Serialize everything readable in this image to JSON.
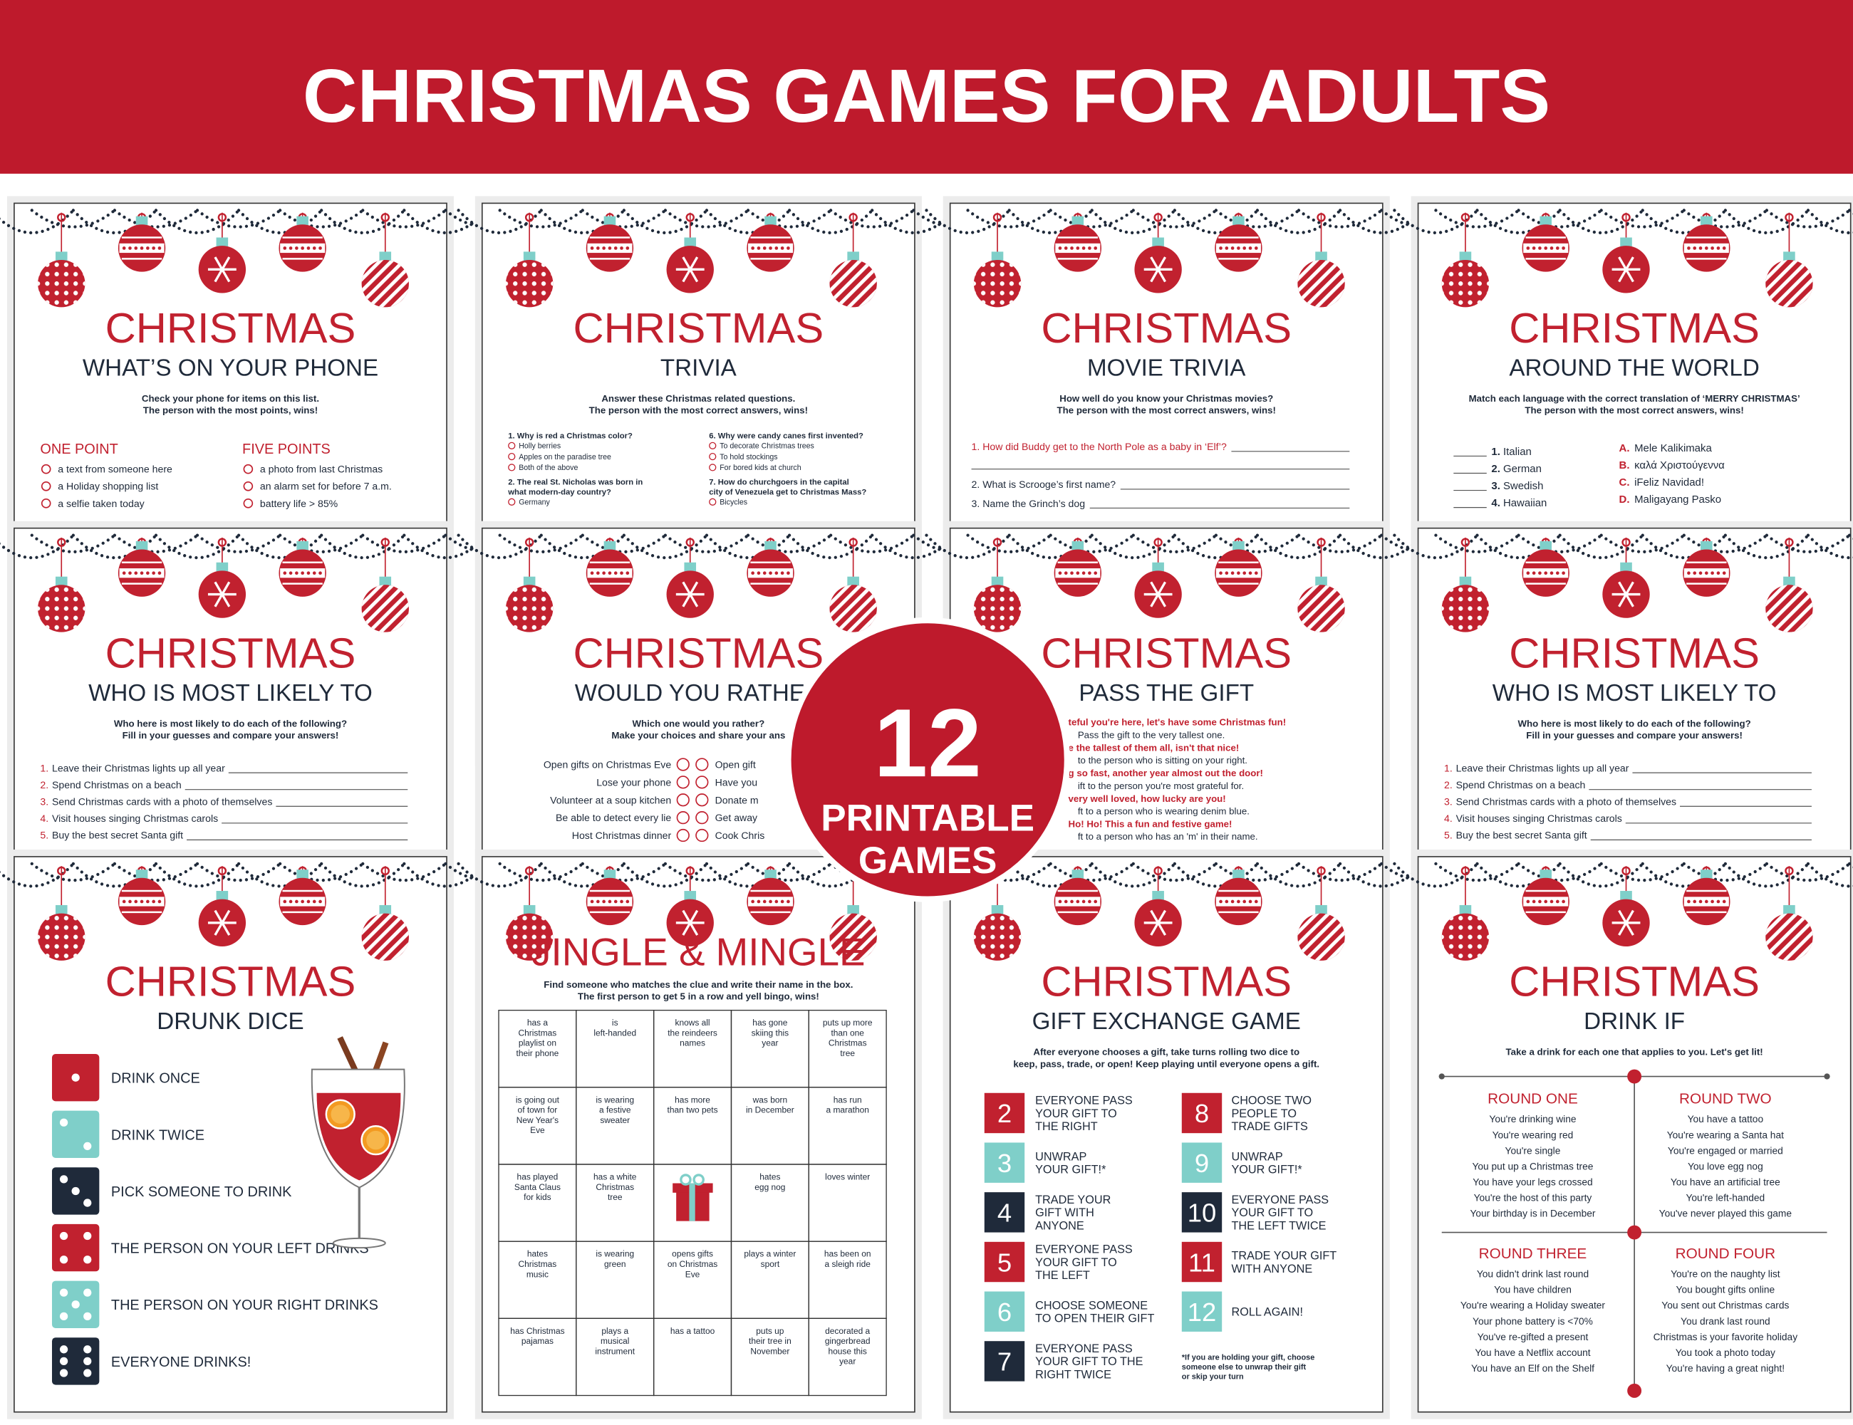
{
  "header": {
    "title": "CHRISTMAS GAMES FOR ADULTS"
  },
  "badge": {
    "number": "12",
    "line1": "PRINTABLE",
    "line2": "GAMES"
  },
  "cards": [
    {
      "title": "CHRISTMAS",
      "subtitle": "WHAT’S ON YOUR PHONE",
      "intro": [
        "Check your phone for items on this list.",
        "The person with the most points, wins!"
      ],
      "columns": [
        {
          "heading": "ONE POINT",
          "items": [
            "a text from someone here",
            "a Holiday shopping list",
            "a selfie taken today"
          ]
        },
        {
          "heading": "FIVE POINTS",
          "items": [
            "a photo from last Christmas",
            "an alarm set for before 7 a.m.",
            "battery life > 85%"
          ]
        }
      ]
    },
    {
      "title": "CHRISTMAS",
      "subtitle": "TRIVIA",
      "intro": [
        "Answer these Christmas related questions.",
        "The person with the most correct answers, wins!"
      ],
      "trivia": [
        [
          {
            "question": [
              "1. Why is red a Christmas color?"
            ],
            "options": [
              "Holly berries",
              "Apples on the paradise tree",
              "Both of the above"
            ]
          },
          {
            "question": [
              "2. The real St. Nicholas was born in",
              "what modern-day country?"
            ],
            "options": [
              "Germany"
            ]
          }
        ],
        [
          {
            "question": [
              "6. Why were candy canes first invented?"
            ],
            "options": [
              "To decorate Christmas trees",
              "To hold stockings",
              "For bored kids at church"
            ]
          },
          {
            "question": [
              "7. How do churchgoers in the capital",
              "city of Venezuela get to Christmas Mass?"
            ],
            "options": [
              "Bicycles"
            ]
          }
        ]
      ]
    },
    {
      "title": "CHRISTMAS",
      "subtitle": "MOVIE TRIVIA",
      "intro": [
        "How well do you know your Christmas movies?",
        "The person with the most correct answers, wins!"
      ],
      "questions": [
        "1. How did Buddy get to the North Pole as a baby in ‘Elf’?",
        "2. What is Scrooge’s first name?",
        "3. Name the Grinch’s dog"
      ]
    },
    {
      "title": "CHRISTMAS",
      "subtitle": "AROUND THE WORLD",
      "intro": [
        "Match each language with the correct translation of ‘MERRY CHRISTMAS’",
        "The person with the most correct answers, wins!"
      ],
      "match": {
        "left": [
          {
            "num": "1.",
            "text": "Italian"
          },
          {
            "num": "2.",
            "text": "German"
          },
          {
            "num": "3.",
            "text": "Swedish"
          },
          {
            "num": "4.",
            "text": "Hawaiian"
          }
        ],
        "right": [
          {
            "letter": "A.",
            "text": "Mele Kalikimaka"
          },
          {
            "letter": "B.",
            "text": "καλά Χριστούγεννα"
          },
          {
            "letter": "C.",
            "text": "iFeliz Navidad!"
          },
          {
            "letter": "D.",
            "text": "Maligayang Pasko"
          }
        ]
      }
    },
    {
      "title": "CHRISTMAS",
      "subtitle": "WHO IS MOST LIKELY TO",
      "intro": [
        "Who here is most likely to do each of the following?",
        "Fill in your guesses and compare your answers!"
      ],
      "items": [
        {
          "num": "1.",
          "text": "Leave their Christmas lights up all year"
        },
        {
          "num": "2.",
          "text": "Spend Christmas on a beach"
        },
        {
          "num": "3.",
          "text": "Send Christmas cards with a photo of themselves"
        },
        {
          "num": "4.",
          "text": "Visit houses singing Christmas carols"
        },
        {
          "num": "5.",
          "text": "Buy the best secret Santa gift"
        }
      ]
    },
    {
      "title": "CHRISTMAS",
      "subtitle": "WOULD YOU RATHER",
      "intro": [
        "Which one would you rather?",
        "Make your choices and share your ans"
      ],
      "pairs": [
        [
          "Open gifts on Christmas Eve",
          "Open gift"
        ],
        [
          "Lose your phone",
          "Have you"
        ],
        [
          "Volunteer at a soup kitchen",
          "Donate m"
        ],
        [
          "Be able to detect every lie",
          "Get away"
        ],
        [
          "Host Christmas dinner",
          "Cook Chris"
        ]
      ]
    },
    {
      "title": "CHRISTMAS",
      "subtitle": "PASS THE GIFT",
      "verses": [
        {
          "rhyme": "teful you're here, let's have some Christmas fun!",
          "action": "Pass the gift to the very tallest one."
        },
        {
          "rhyme": "e the tallest of them all, isn't that nice!",
          "action": "to the person who is sitting on your right."
        },
        {
          "rhyme": "g so fast, another year almost out the door!",
          "action": "ift to the person you're most grateful for."
        },
        {
          "rhyme": "very well loved, how lucky are you!",
          "action": "ft to a person who is wearing denim blue."
        },
        {
          "rhyme": "Ho! Ho! This a fun and festive game!",
          "action": "ft to a person who has an 'm' in their name."
        }
      ]
    },
    {
      "title": "CHRISTMAS",
      "subtitle": "WHO IS MOST LIKELY TO",
      "intro": [
        "Who here is most likely to do each of the following?",
        "Fill in your guesses and compare your answers!"
      ],
      "items": [
        {
          "num": "1.",
          "text": "Leave their Christmas lights up all year"
        },
        {
          "num": "2.",
          "text": "Spend Christmas on a beach"
        },
        {
          "num": "3.",
          "text": "Send Christmas cards with a photo of themselves"
        },
        {
          "num": "4.",
          "text": "Visit houses singing Christmas carols"
        },
        {
          "num": "5.",
          "text": "Buy the best secret Santa gift"
        }
      ]
    },
    {
      "title": "CHRISTMAS",
      "subtitle": "DRUNK DICE",
      "dice": [
        {
          "face": 1,
          "color": "#c1212f",
          "label": "DRINK ONCE"
        },
        {
          "face": 2,
          "color": "#7fcfc9",
          "label": "DRINK TWICE"
        },
        {
          "face": 3,
          "color": "#1f2a3a",
          "label": "PICK SOMEONE TO DRINK"
        },
        {
          "face": 4,
          "color": "#c1212f",
          "label": "THE PERSON ON YOUR LEFT DRINKS"
        },
        {
          "face": 5,
          "color": "#7fcfc9",
          "label": "THE PERSON ON YOUR RIGHT DRINKS"
        },
        {
          "face": 6,
          "color": "#1f2a3a",
          "label": "EVERYONE DRINKS!"
        }
      ]
    },
    {
      "title": "JINGLE & MINGLE",
      "intro": [
        "Find someone who matches the clue and write their name in the box.",
        "The first person to get 5 in a row and yell bingo, wins!"
      ],
      "grid": [
        [
          [
            "has a",
            "Christmas",
            "playlist on",
            "their phone"
          ],
          [
            "is",
            "left-handed"
          ],
          [
            "knows all",
            "the reindeers",
            "names"
          ],
          [
            "has gone",
            "skiing this",
            "year"
          ],
          [
            "puts up more",
            "than one",
            "Christmas",
            "tree"
          ]
        ],
        [
          [
            "is going out",
            "of town for",
            "New Year's",
            "Eve"
          ],
          [
            "is wearing",
            "a festive",
            "sweater"
          ],
          [
            "has more",
            "than two pets"
          ],
          [
            "was born",
            "in December"
          ],
          [
            "has run",
            "a marathon"
          ]
        ],
        [
          [
            "has played",
            "Santa Claus",
            "for kids"
          ],
          [
            "has a white",
            "Christmas",
            "tree"
          ],
          null,
          [
            "hates",
            "egg nog"
          ],
          [
            "loves winter"
          ]
        ],
        [
          [
            "hates",
            "Christmas",
            "music"
          ],
          [
            "is wearing",
            "green"
          ],
          [
            "opens gifts",
            "on Christmas",
            "Eve"
          ],
          [
            "plays a winter",
            "sport"
          ],
          [
            "has been on",
            "a sleigh ride"
          ]
        ],
        [
          [
            "has Christmas",
            "pajamas"
          ],
          [
            "plays a",
            "musical",
            "instrument"
          ],
          [
            "has a tattoo"
          ],
          [
            "puts up",
            "their tree in",
            "November"
          ],
          [
            "decorated a",
            "gingerbread",
            "house this",
            "year"
          ]
        ]
      ]
    },
    {
      "title": "CHRISTMAS",
      "subtitle": "GIFT EXCHANGE GAME",
      "intro": [
        "After everyone chooses a gift, take turns rolling two dice to",
        "keep, pass, trade, or open! Keep playing until everyone opens a gift."
      ],
      "rolls": [
        {
          "number": 2,
          "color": "#c1212f",
          "lines": [
            "EVERYONE PASS",
            "YOUR GIFT TO",
            "THE RIGHT"
          ]
        },
        {
          "number": 3,
          "color": "#7fcfc9",
          "lines": [
            "UNWRAP",
            "YOUR GIFT!*"
          ]
        },
        {
          "number": 4,
          "color": "#1f2a3a",
          "lines": [
            "TRADE YOUR",
            "GIFT WITH",
            "ANYONE"
          ]
        },
        {
          "number": 5,
          "color": "#c1212f",
          "lines": [
            "EVERYONE PASS",
            "YOUR GIFT TO",
            "THE LEFT"
          ]
        },
        {
          "number": 6,
          "color": "#7fcfc9",
          "lines": [
            "CHOOSE SOMEONE",
            "TO OPEN THEIR GIFT"
          ]
        },
        {
          "number": 7,
          "color": "#1f2a3a",
          "lines": [
            "EVERYONE PASS",
            "YOUR GIFT TO THE",
            "RIGHT TWICE"
          ]
        },
        {
          "number": 8,
          "color": "#c1212f",
          "lines": [
            "CHOOSE TWO",
            "PEOPLE TO",
            "TRADE GIFTS"
          ]
        },
        {
          "number": 9,
          "color": "#7fcfc9",
          "lines": [
            "UNWRAP",
            "YOUR GIFT!*"
          ]
        },
        {
          "number": 10,
          "color": "#1f2a3a",
          "lines": [
            "EVERYONE PASS",
            "YOUR GIFT TO",
            "THE LEFT TWICE"
          ]
        },
        {
          "number": 11,
          "color": "#c1212f",
          "lines": [
            "TRADE YOUR GIFT",
            "WITH ANYONE"
          ]
        },
        {
          "number": 12,
          "color": "#7fcfc9",
          "lines": [
            "ROLL AGAIN!"
          ]
        }
      ],
      "note": [
        "*If you are holding your gift, choose",
        "someone else to unwrap their gift",
        "or skip your turn"
      ]
    },
    {
      "title": "CHRISTMAS",
      "subtitle": "DRINK IF",
      "intro": [
        "Take a drink for each one that applies to you. Let's get lit!"
      ],
      "rounds": [
        {
          "heading": "ROUND ONE",
          "items": [
            "You're drinking wine",
            "You're wearing red",
            "You're single",
            "You put up a Christmas tree",
            "You have your legs crossed",
            "You're the host of this party",
            "Your birthday is in December"
          ]
        },
        {
          "heading": "ROUND TWO",
          "items": [
            "You have a tattoo",
            "You're wearing a Santa hat",
            "You're engaged or married",
            "You love egg nog",
            "You have an artificial tree",
            "You're left-handed",
            "You've never played this game"
          ]
        },
        {
          "heading": "ROUND THREE",
          "items": [
            "You didn't drink last round",
            "You have children",
            "You're wearing a Holiday sweater",
            "Your phone battery is <70%",
            "You've re-gifted a present",
            "You have a Netflix account",
            "You have an Elf on the Shelf"
          ]
        },
        {
          "heading": "ROUND FOUR",
          "items": [
            "You're on the naughty list",
            "You bought gifts online",
            "You sent out Christmas cards",
            "You drank last round",
            "Christmas is your favorite holiday",
            "You took a photo today",
            "You're having a great night!"
          ]
        }
      ]
    }
  ]
}
